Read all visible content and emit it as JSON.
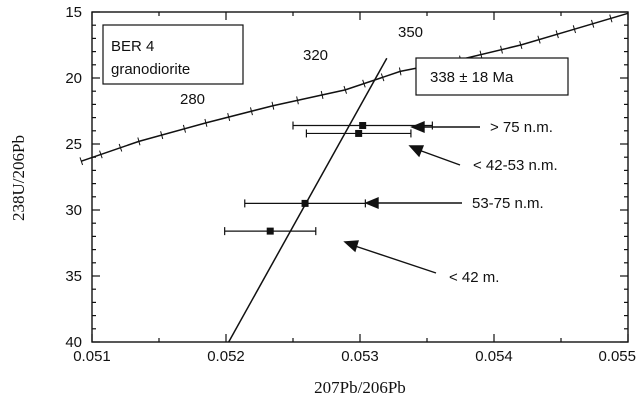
{
  "chart_data": {
    "type": "scatter",
    "title": "",
    "xlabel": "207Pb/206Pb",
    "ylabel": "238U/206Pb",
    "xlim": [
      0.051,
      0.055
    ],
    "ylim": [
      15,
      40
    ],
    "y_inverted": true,
    "x_ticks": [
      "0.051",
      "0.052",
      "0.053",
      "0.054",
      "0.055"
    ],
    "y_ticks": [
      "15",
      "20",
      "25",
      "30",
      "35",
      "40"
    ],
    "grid": false,
    "series": [
      {
        "points": [
          {
            "x": 0.05302,
            "y": 23.6,
            "xerr": 0.00052
          },
          {
            "x": 0.05299,
            "y": 24.2,
            "xerr": 0.00039
          },
          {
            "x": 0.05259,
            "y": 29.5,
            "xerr": 0.00045
          },
          {
            "x": 0.05233,
            "y": 31.6,
            "xerr": 0.00034
          }
        ]
      }
    ],
    "concordia": {
      "x": [
        0.05092,
        0.05135,
        0.05185,
        0.05235,
        0.05289,
        0.0533,
        0.05375,
        0.0542,
        0.0546,
        0.055
      ],
      "y": [
        26.3,
        24.8,
        23.4,
        22.1,
        20.9,
        19.5,
        18.6,
        17.5,
        16.3,
        15.1
      ]
    },
    "concordia_labels": [
      "280",
      "320",
      "350"
    ],
    "regression_line": {
      "x": [
        0.05202,
        0.0532
      ],
      "y": [
        40.0,
        18.5
      ]
    },
    "annotations": {
      "sample_box": [
        "BER 4",
        "granodiorite"
      ],
      "age_box": "338 ± 18 Ma",
      "arrow_labels": [
        "> 75 n.m.",
        "< 42-53 n.m.",
        "53-75 n.m.",
        "< 42 m."
      ]
    }
  }
}
